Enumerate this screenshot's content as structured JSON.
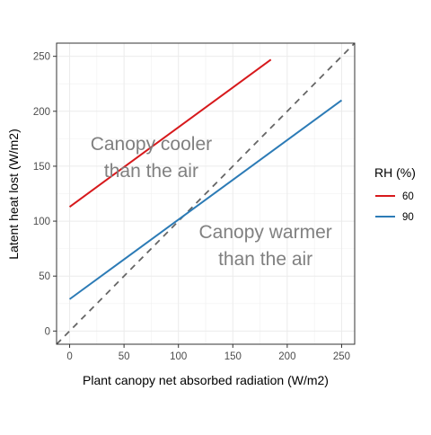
{
  "chart_data": {
    "type": "line",
    "title": "",
    "xlabel": "Plant canopy net absorbed radiation (W/m2)",
    "ylabel": "Latent heat lost (W/m2)",
    "xlim": [
      -12,
      262
    ],
    "ylim": [
      -12,
      262
    ],
    "x_ticks": [
      0,
      50,
      100,
      150,
      200,
      250
    ],
    "y_ticks": [
      0,
      50,
      100,
      150,
      200,
      250
    ],
    "grid": true,
    "legend": {
      "title": "RH (%)",
      "position": "right"
    },
    "series": [
      {
        "name": "60",
        "color": "#d7191c",
        "x": [
          0,
          185
        ],
        "y": [
          113,
          247
        ]
      },
      {
        "name": "90",
        "color": "#2c7bb6",
        "x": [
          0,
          250
        ],
        "y": [
          29,
          210
        ]
      }
    ],
    "reference_line": {
      "style": "dashed",
      "color": "#666666",
      "x": [
        -12,
        262
      ],
      "y": [
        -12,
        262
      ]
    },
    "annotations": [
      {
        "lines": [
          "Canopy cooler",
          "than the air"
        ],
        "x": 75,
        "y": 158
      },
      {
        "lines": [
          "Canopy warmer",
          "than the air"
        ],
        "x": 180,
        "y": 78
      }
    ]
  }
}
